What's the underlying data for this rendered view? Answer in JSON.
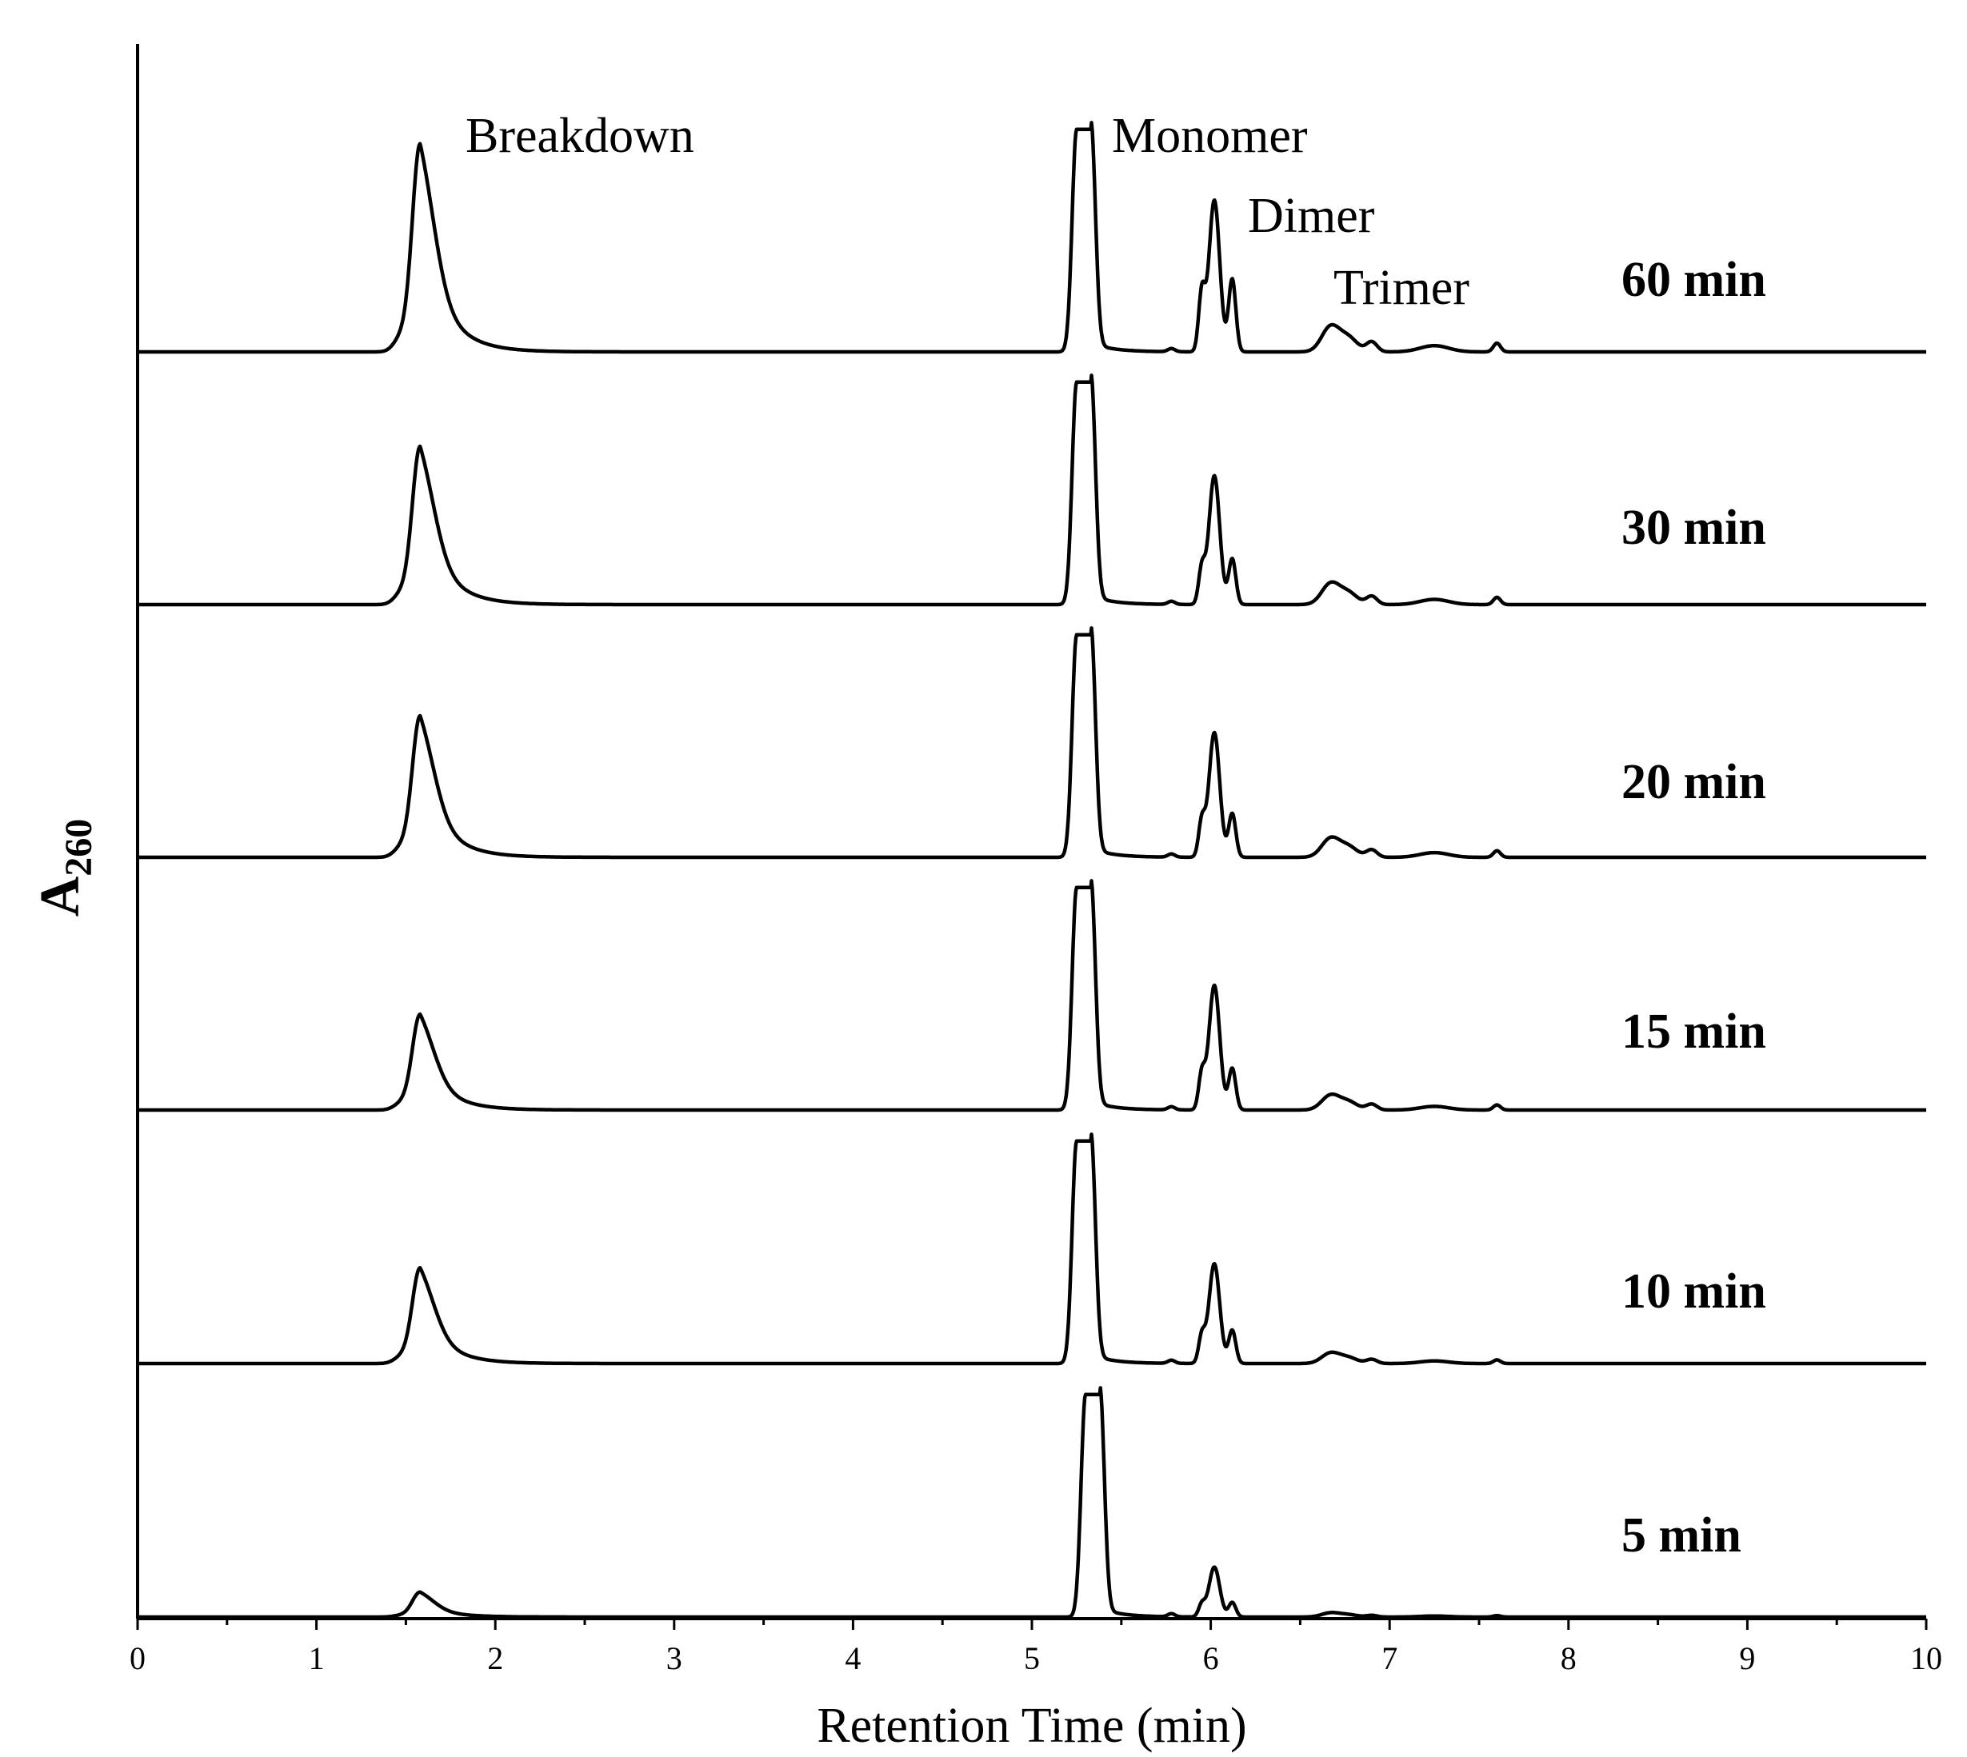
{
  "chart_data": {
    "type": "line",
    "xlabel": "Retention Time (min)",
    "ylabel": "A",
    "ylabel_subscript": "260",
    "xlim": [
      0,
      10
    ],
    "x_ticks": [
      "0",
      "1",
      "2",
      "3",
      "4",
      "5",
      "6",
      "7",
      "8",
      "9",
      "10"
    ],
    "grid": false,
    "layout": "stacked, offset traces",
    "peak_labels": [
      {
        "text": "Breakdown",
        "x": 1.85
      },
      {
        "text": "Monomer",
        "x": 5.45
      },
      {
        "text": "Dimer",
        "x": 6.22
      },
      {
        "text": "Trimer",
        "x": 6.7
      }
    ],
    "series": [
      {
        "name": "60 min",
        "peaks": {
          "breakdown": 1.0,
          "monomer": 1.07,
          "dimer": 0.73,
          "dimer_shoulder": 0.28,
          "dimer_tail": 0.35,
          "trimer": 0.12
        }
      },
      {
        "name": "30 min",
        "peaks": {
          "breakdown": 0.76,
          "monomer": 1.07,
          "dimer": 0.62,
          "dimer_shoulder": 0.17,
          "dimer_tail": 0.22,
          "trimer": 0.1
        }
      },
      {
        "name": "20 min",
        "peaks": {
          "breakdown": 0.68,
          "monomer": 1.07,
          "dimer": 0.6,
          "dimer_shoulder": 0.17,
          "dimer_tail": 0.21,
          "trimer": 0.09
        }
      },
      {
        "name": "15 min",
        "peaks": {
          "breakdown": 0.46,
          "monomer": 1.07,
          "dimer": 0.6,
          "dimer_shoulder": 0.17,
          "dimer_tail": 0.2,
          "trimer": 0.07
        }
      },
      {
        "name": "10 min",
        "peaks": {
          "breakdown": 0.46,
          "monomer": 1.07,
          "dimer": 0.48,
          "dimer_shoulder": 0.13,
          "dimer_tail": 0.16,
          "trimer": 0.05
        }
      },
      {
        "name": "5 min",
        "peaks": {
          "breakdown": 0.12,
          "monomer": 1.07,
          "dimer": 0.24,
          "dimer_shoulder": 0.06,
          "dimer_tail": 0.07,
          "trimer": 0.02
        }
      }
    ]
  }
}
